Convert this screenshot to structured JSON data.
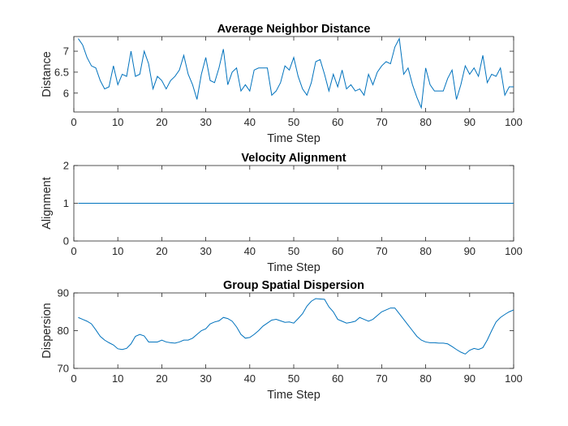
{
  "chart_data": [
    {
      "type": "line",
      "title": "Average Neighbor Distance",
      "xlabel": "Time Step",
      "ylabel": "Distance",
      "xlim": [
        0,
        100
      ],
      "ylim": [
        5.55,
        7.35
      ],
      "xticks": [
        0,
        10,
        20,
        30,
        40,
        50,
        60,
        70,
        80,
        90,
        100
      ],
      "yticks": [
        6,
        6.5,
        7
      ],
      "ytick_labels": [
        "6",
        "6.5",
        "7"
      ],
      "grid": false,
      "color": "#0072BD",
      "x": [
        1,
        2,
        3,
        4,
        5,
        6,
        7,
        8,
        9,
        10,
        11,
        12,
        13,
        14,
        15,
        16,
        17,
        18,
        19,
        20,
        21,
        22,
        23,
        24,
        25,
        26,
        27,
        28,
        29,
        30,
        31,
        32,
        33,
        34,
        35,
        36,
        37,
        38,
        39,
        40,
        41,
        42,
        43,
        44,
        45,
        46,
        47,
        48,
        49,
        50,
        51,
        52,
        53,
        54,
        55,
        56,
        57,
        58,
        59,
        60,
        61,
        62,
        63,
        64,
        65,
        66,
        67,
        68,
        69,
        70,
        71,
        72,
        73,
        74,
        75,
        76,
        77,
        78,
        79,
        80,
        81,
        82,
        83,
        84,
        85,
        86,
        87,
        88,
        89,
        90,
        91,
        92,
        93,
        94,
        95,
        96,
        97,
        98,
        99,
        100
      ],
      "values": [
        7.3,
        7.15,
        6.85,
        6.65,
        6.6,
        6.3,
        6.1,
        6.15,
        6.65,
        6.2,
        6.45,
        6.4,
        7.0,
        6.4,
        6.45,
        7.0,
        6.7,
        6.1,
        6.4,
        6.3,
        6.1,
        6.3,
        6.4,
        6.55,
        6.9,
        6.45,
        6.2,
        5.85,
        6.45,
        6.85,
        6.3,
        6.25,
        6.6,
        7.05,
        6.2,
        6.5,
        6.6,
        6.05,
        6.2,
        6.05,
        6.55,
        6.6,
        6.6,
        6.6,
        5.95,
        6.05,
        6.25,
        6.65,
        6.55,
        6.85,
        6.4,
        6.1,
        5.95,
        6.25,
        6.75,
        6.8,
        6.45,
        6.05,
        6.45,
        6.15,
        6.55,
        6.1,
        6.2,
        6.05,
        6.1,
        5.95,
        6.45,
        6.2,
        6.5,
        6.65,
        6.75,
        6.7,
        7.1,
        7.3,
        6.45,
        6.6,
        6.2,
        5.9,
        5.65,
        6.6,
        6.2,
        6.05,
        6.05,
        6.05,
        6.35,
        6.55,
        5.85,
        6.2,
        6.65,
        6.45,
        6.6,
        6.4,
        6.9,
        6.25,
        6.45,
        6.4,
        6.6,
        5.95,
        6.15,
        6.15
      ]
    },
    {
      "type": "line",
      "title": "Velocity Alignment",
      "xlabel": "Time Step",
      "ylabel": "Alignment",
      "xlim": [
        0,
        100
      ],
      "ylim": [
        0,
        2
      ],
      "xticks": [
        0,
        10,
        20,
        30,
        40,
        50,
        60,
        70,
        80,
        90,
        100
      ],
      "yticks": [
        0,
        1,
        2
      ],
      "ytick_labels": [
        "0",
        "1",
        "2"
      ],
      "grid": false,
      "color": "#0072BD",
      "x": [
        1,
        100
      ],
      "values": [
        1,
        1
      ]
    },
    {
      "type": "line",
      "title": "Group Spatial Dispersion",
      "xlabel": "Time Step",
      "ylabel": "Dispersion",
      "xlim": [
        0,
        100
      ],
      "ylim": [
        70,
        90
      ],
      "xticks": [
        0,
        10,
        20,
        30,
        40,
        50,
        60,
        70,
        80,
        90,
        100
      ],
      "yticks": [
        70,
        80,
        90
      ],
      "ytick_labels": [
        "70",
        "80",
        "90"
      ],
      "grid": false,
      "color": "#0072BD",
      "x": [
        1,
        2,
        3,
        4,
        5,
        6,
        7,
        8,
        9,
        10,
        11,
        12,
        13,
        14,
        15,
        16,
        17,
        18,
        19,
        20,
        21,
        22,
        23,
        24,
        25,
        26,
        27,
        28,
        29,
        30,
        31,
        32,
        33,
        34,
        35,
        36,
        37,
        38,
        39,
        40,
        41,
        42,
        43,
        44,
        45,
        46,
        47,
        48,
        49,
        50,
        51,
        52,
        53,
        54,
        55,
        56,
        57,
        58,
        59,
        60,
        61,
        62,
        63,
        64,
        65,
        66,
        67,
        68,
        69,
        70,
        71,
        72,
        73,
        74,
        75,
        76,
        77,
        78,
        79,
        80,
        81,
        82,
        83,
        84,
        85,
        86,
        87,
        88,
        89,
        90,
        91,
        92,
        93,
        94,
        95,
        96,
        97,
        98,
        99,
        100
      ],
      "values": [
        83.5,
        83.0,
        82.5,
        81.8,
        80.2,
        78.5,
        77.5,
        76.8,
        76.2,
        75.2,
        75.0,
        75.3,
        76.5,
        78.5,
        79.0,
        78.6,
        77.0,
        77.0,
        77.0,
        77.5,
        77.0,
        76.8,
        76.7,
        77.0,
        77.5,
        77.5,
        78.0,
        79.0,
        80.0,
        80.5,
        81.8,
        82.3,
        82.6,
        83.5,
        83.2,
        82.5,
        81.0,
        79.0,
        78.0,
        78.2,
        79.0,
        80.0,
        81.2,
        82.0,
        82.8,
        83.0,
        82.6,
        82.2,
        82.3,
        82.0,
        83.2,
        84.5,
        86.5,
        87.8,
        88.5,
        88.4,
        88.3,
        86.3,
        85.0,
        83.0,
        82.5,
        82.0,
        82.2,
        82.5,
        83.5,
        83.0,
        82.5,
        83.0,
        84.0,
        85.0,
        85.5,
        86.0,
        86.0,
        84.5,
        83.0,
        81.5,
        80.0,
        78.5,
        77.5,
        77.0,
        76.8,
        76.8,
        76.7,
        76.7,
        76.5,
        75.8,
        75.0,
        74.3,
        73.8,
        74.8,
        75.3,
        75.0,
        75.5,
        77.5,
        80.0,
        82.3,
        83.5,
        84.3,
        85.0,
        85.5
      ]
    }
  ]
}
